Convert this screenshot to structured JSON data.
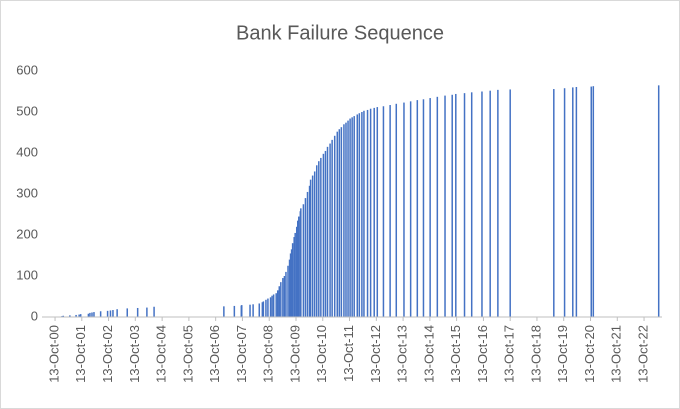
{
  "chart_data": {
    "type": "bar",
    "title": "Bank Failure Sequence",
    "color": "#4472c4",
    "x": [
      "2000-11-02",
      "2001-01-14",
      "2001-02-02",
      "2001-05-03",
      "2001-07-27",
      "2001-09-07",
      "2001-09-28",
      "2002-01-11",
      "2002-02-01",
      "2002-03-01",
      "2002-03-28",
      "2002-06-27",
      "2002-09-30",
      "2002-11-08",
      "2002-12-12",
      "2003-02-07",
      "2003-06-25",
      "2003-11-14",
      "2004-03-19",
      "2004-06-25",
      "2007-02-02",
      "2007-06-25",
      "2007-09-28",
      "2007-10-04",
      "2008-01-25",
      "2008-03-07",
      "2008-05-30",
      "2008-07-11",
      "2008-07-25",
      "2008-08-29",
      "2008-09-25",
      "2008-10-31",
      "2008-11-21",
      "2008-12-12",
      "2009-01-16",
      "2009-02-06",
      "2009-02-27",
      "2009-03-20",
      "2009-04-17",
      "2009-05-08",
      "2009-05-29",
      "2009-06-26",
      "2009-07-17",
      "2009-07-31",
      "2009-08-14",
      "2009-08-28",
      "2009-09-18",
      "2009-10-02",
      "2009-10-23",
      "2009-11-06",
      "2009-11-20",
      "2009-12-11",
      "2009-12-18",
      "2010-01-22",
      "2010-02-19",
      "2010-03-19",
      "2010-04-16",
      "2010-04-30",
      "2010-05-28",
      "2010-06-25",
      "2010-07-23",
      "2010-08-20",
      "2010-09-17",
      "2010-10-22",
      "2010-11-19",
      "2010-12-17",
      "2011-01-21",
      "2011-02-18",
      "2011-03-25",
      "2011-04-29",
      "2011-05-27",
      "2011-06-24",
      "2011-07-29",
      "2011-08-26",
      "2011-09-23",
      "2011-10-21",
      "2011-11-18",
      "2011-12-16",
      "2012-01-27",
      "2012-02-24",
      "2012-03-30",
      "2012-04-27",
      "2012-06-15",
      "2012-07-27",
      "2012-09-14",
      "2012-10-26",
      "2013-01-18",
      "2013-04-19",
      "2013-07-12",
      "2013-10-25",
      "2014-01-24",
      "2014-04-25",
      "2014-07-18",
      "2014-10-17",
      "2015-01-23",
      "2015-05-08",
      "2015-08-14",
      "2015-10-02",
      "2016-01-29",
      "2016-05-06",
      "2016-09-23",
      "2017-01-13",
      "2017-04-28",
      "2017-10-13",
      "2019-05-31",
      "2019-10-25",
      "2020-02-14",
      "2020-04-03",
      "2020-10-23",
      "2020-11-20",
      "2023-05-01"
    ],
    "values": [
      1,
      2,
      3,
      4,
      5,
      6,
      7,
      8,
      10,
      11,
      12,
      14,
      15,
      16,
      17,
      19,
      21,
      22,
      23,
      25,
      26,
      27,
      28,
      29,
      30,
      31,
      33,
      36,
      38,
      42,
      45,
      48,
      52,
      55,
      58,
      65,
      75,
      85,
      95,
      100,
      110,
      125,
      140,
      155,
      165,
      180,
      195,
      205,
      220,
      235,
      245,
      258,
      265,
      275,
      290,
      305,
      320,
      335,
      345,
      355,
      370,
      380,
      388,
      398,
      405,
      415,
      423,
      432,
      442,
      452,
      458,
      463,
      470,
      474,
      479,
      484,
      487,
      490,
      494,
      497,
      500,
      503,
      505,
      508,
      510,
      512,
      514,
      517,
      520,
      523,
      526,
      529,
      531,
      534,
      537,
      540,
      542,
      544,
      546,
      548,
      550,
      552,
      554,
      555,
      556,
      558,
      560,
      561,
      562,
      563,
      565
    ],
    "xlim": [
      "2000-04-18",
      "2023-06-15"
    ],
    "xticks": [
      {
        "value": "2000-10-13",
        "label": "13-Oct-00"
      },
      {
        "value": "2001-10-13",
        "label": "13-Oct-01"
      },
      {
        "value": "2002-10-13",
        "label": "13-Oct-02"
      },
      {
        "value": "2003-10-13",
        "label": "13-Oct-03"
      },
      {
        "value": "2004-10-13",
        "label": "13-Oct-04"
      },
      {
        "value": "2005-10-13",
        "label": "13-Oct-05"
      },
      {
        "value": "2006-10-13",
        "label": "13-Oct-06"
      },
      {
        "value": "2007-10-13",
        "label": "13-Oct-07"
      },
      {
        "value": "2008-10-13",
        "label": "13-Oct-08"
      },
      {
        "value": "2009-10-13",
        "label": "13-Oct-09"
      },
      {
        "value": "2010-10-13",
        "label": "13-Oct-10"
      },
      {
        "value": "2011-10-13",
        "label": "13-Oct-11"
      },
      {
        "value": "2012-10-13",
        "label": "13-Oct-12"
      },
      {
        "value": "2013-10-13",
        "label": "13-Oct-13"
      },
      {
        "value": "2014-10-13",
        "label": "13-Oct-14"
      },
      {
        "value": "2015-10-13",
        "label": "13-Oct-15"
      },
      {
        "value": "2016-10-13",
        "label": "13-Oct-16"
      },
      {
        "value": "2017-10-13",
        "label": "13-Oct-17"
      },
      {
        "value": "2018-10-13",
        "label": "13-Oct-18"
      },
      {
        "value": "2019-10-13",
        "label": "13-Oct-19"
      },
      {
        "value": "2020-10-13",
        "label": "13-Oct-20"
      },
      {
        "value": "2021-10-13",
        "label": "13-Oct-21"
      },
      {
        "value": "2022-10-13",
        "label": "13-Oct-22"
      }
    ],
    "ylim": [
      0,
      600
    ],
    "yticks": [
      0,
      100,
      200,
      300,
      400,
      500,
      600
    ],
    "grid": false
  }
}
